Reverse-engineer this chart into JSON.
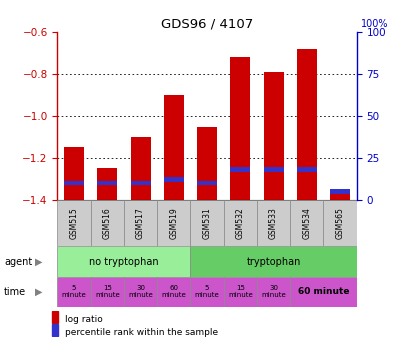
{
  "title": "GDS96 / 4107",
  "categories": [
    "GSM515",
    "GSM516",
    "GSM517",
    "GSM519",
    "GSM531",
    "GSM532",
    "GSM533",
    "GSM534",
    "GSM565"
  ],
  "log_ratio": [
    -1.15,
    -1.25,
    -1.1,
    -0.9,
    -1.05,
    -0.72,
    -0.79,
    -0.68,
    -1.35
  ],
  "percentile_rank": [
    10,
    10,
    10,
    12,
    10,
    18,
    18,
    18,
    5
  ],
  "bar_color": "#cc0000",
  "marker_color": "#3333cc",
  "ylim_left": [
    -1.4,
    -0.6
  ],
  "ylim_right": [
    0,
    100
  ],
  "yticks_left": [
    -1.4,
    -1.2,
    -1.0,
    -0.8,
    -0.6
  ],
  "yticks_right": [
    0,
    25,
    50,
    75,
    100
  ],
  "left_axis_color": "#cc0000",
  "right_axis_color": "#0000cc",
  "grid_color": "#000000",
  "cat_bg": "#cccccc",
  "agent_no_tryp_color": "#99ee99",
  "agent_tryp_color": "#66cc66",
  "time_color": "#cc55cc",
  "bar_width": 0.6
}
